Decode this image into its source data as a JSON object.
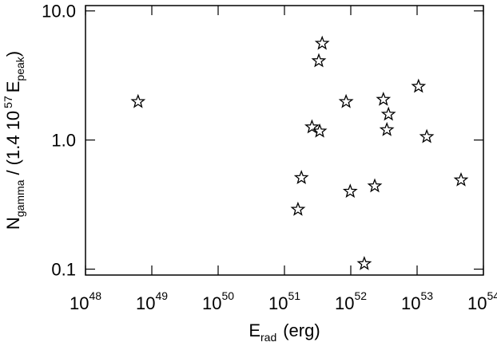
{
  "chart_data": {
    "type": "scatter",
    "marker": "star",
    "color": "#000000",
    "xlog": true,
    "ylog": true,
    "xlim": [
      1e+48,
      1e+54
    ],
    "ylim": [
      0.09,
      11
    ],
    "xticks": [
      {
        "value": 1e+48,
        "label": "10",
        "exponent": "48"
      },
      {
        "value": 1e+49,
        "label": "10",
        "exponent": "49"
      },
      {
        "value": 1e+50,
        "label": "10",
        "exponent": "50"
      },
      {
        "value": 1e+51,
        "label": "10",
        "exponent": "51"
      },
      {
        "value": 1e+52,
        "label": "10",
        "exponent": "52"
      },
      {
        "value": 1e+53,
        "label": "10",
        "exponent": "53"
      },
      {
        "value": 1e+54,
        "label": "10",
        "exponent": "54"
      }
    ],
    "yticks": [
      0.1,
      {
        "value": 1,
        "label": "1.0"
      },
      {
        "value": 10,
        "label": "10.0"
      }
    ],
    "xlabel": {
      "symbol": "E",
      "sub": "rad",
      "unit": "(erg)"
    },
    "ylabel": {
      "symbol": "N",
      "sub": "gamma",
      "middle": "/ (1.4 10",
      "sup": "57",
      "symbol2": "E",
      "sub2": "peak",
      "end": ")"
    },
    "x": [
      6.2e+48,
      3.7e+51,
      3.3e+51,
      2.6e+51,
      3.4e+51,
      1.8e+51,
      1.6e+51,
      8.5e+51,
      9.8e+51,
      2.3e+52,
      1.6e+52,
      3.1e+52,
      3.7e+52,
      3.5e+52,
      1.05e+53,
      1.4e+53,
      4.6e+53
    ],
    "values": [
      1.98,
      5.6,
      4.1,
      1.26,
      1.17,
      0.51,
      0.29,
      1.98,
      0.4,
      0.44,
      0.11,
      2.06,
      1.58,
      1.2,
      2.6,
      1.06,
      0.49
    ]
  }
}
